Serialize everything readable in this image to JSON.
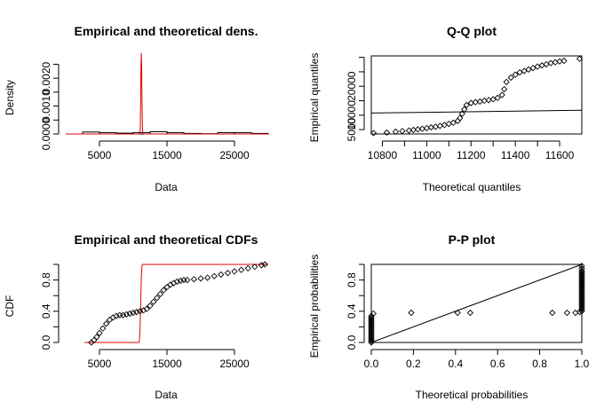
{
  "chart_data": [
    {
      "type": "histogram",
      "title": "Empirical and theoretical dens.",
      "xlabel": "Data",
      "ylabel": "Density",
      "xlim": [
        0,
        30000
      ],
      "ylim": [
        0,
        0.0028
      ],
      "x_ticks": [
        "5000",
        "15000",
        "25000"
      ],
      "y_ticks": [
        "0.0000",
        "0.0010",
        "0.0020"
      ],
      "x_tick_values": [
        5000,
        15000,
        25000
      ],
      "y_tick_values": [
        0,
        0.001,
        0.002
      ],
      "y_minor_ticks": [
        0.0005,
        0.0015,
        0.0025
      ],
      "histogram_bins": [
        {
          "from": 2500,
          "to": 5000,
          "density": 7e-05
        },
        {
          "from": 5000,
          "to": 7500,
          "density": 5e-05
        },
        {
          "from": 7500,
          "to": 10000,
          "density": 3e-05
        },
        {
          "from": 10000,
          "to": 12500,
          "density": 5e-05
        },
        {
          "from": 12500,
          "to": 15000,
          "density": 8e-05
        },
        {
          "from": 15000,
          "to": 17500,
          "density": 5e-05
        },
        {
          "from": 17500,
          "to": 20000,
          "density": 2e-05
        },
        {
          "from": 20000,
          "to": 22500,
          "density": 1e-05
        },
        {
          "from": 22500,
          "to": 25000,
          "density": 5e-05
        },
        {
          "from": 25000,
          "to": 27500,
          "density": 5e-05
        },
        {
          "from": 27500,
          "to": 30000,
          "density": 2e-05
        }
      ],
      "theoretical_density": {
        "x": [
          0,
          10900,
          11000,
          11050,
          11100,
          11150,
          11200,
          11250,
          11300,
          11350,
          11400,
          11500,
          30000
        ],
        "y": [
          0,
          0,
          5e-05,
          0.0003,
          0.0012,
          0.0024,
          0.0029,
          0.0024,
          0.0012,
          0.0003,
          5e-05,
          0,
          0
        ]
      },
      "colors": {
        "theoretical": "#dd0000",
        "empirical": "#000000"
      }
    },
    {
      "type": "scatter",
      "title": "Q-Q plot",
      "xlabel": "Theoretical quantiles",
      "ylabel": "Empirical quantiles",
      "xlim": [
        10750,
        11700
      ],
      "ylim": [
        3500,
        30500
      ],
      "x_ticks": [
        "10800",
        "11000",
        "11200",
        "11400",
        "11600"
      ],
      "y_ticks": [
        "5000",
        "10000",
        "20000"
      ],
      "x_tick_values": [
        10800,
        10900,
        11000,
        11100,
        11200,
        11300,
        11400,
        11500,
        11600
      ],
      "x_tick_labels_at": [
        10800,
        11000,
        11200,
        11400,
        11600
      ],
      "y_tick_values": [
        5000,
        10000,
        15000,
        20000,
        25000,
        30000
      ],
      "y_tick_labels_at": [
        5000,
        10000,
        20000
      ],
      "reference_line": {
        "x": [
          10750,
          11700
        ],
        "y": [
          10750,
          11700
        ]
      },
      "points": {
        "x": [
          10760,
          10820,
          10860,
          10890,
          10920,
          10940,
          10960,
          10980,
          11000,
          11020,
          11040,
          11060,
          11080,
          11100,
          11120,
          11140,
          11150,
          11160,
          11170,
          11180,
          11200,
          11220,
          11240,
          11260,
          11280,
          11300,
          11320,
          11340,
          11350,
          11360,
          11380,
          11400,
          11420,
          11440,
          11460,
          11480,
          11500,
          11520,
          11540,
          11560,
          11580,
          11600,
          11620,
          11690
        ],
        "y": [
          3800,
          4000,
          4300,
          4500,
          4700,
          4900,
          5100,
          5300,
          5500,
          5800,
          6000,
          6300,
          6600,
          7000,
          7400,
          8000,
          9000,
          10500,
          12000,
          13500,
          14200,
          14500,
          14700,
          15000,
          15200,
          15500,
          16000,
          17000,
          19000,
          21500,
          23000,
          24000,
          24800,
          25300,
          25800,
          26300,
          26800,
          27200,
          27600,
          28000,
          28300,
          28600,
          28800,
          29500
        ]
      }
    },
    {
      "type": "line",
      "title": "Empirical and theoretical CDFs",
      "xlabel": "Data",
      "ylabel": "CDF",
      "xlim": [
        0,
        30000
      ],
      "ylim": [
        0,
        1
      ],
      "x_ticks": [
        "5000",
        "15000",
        "25000"
      ],
      "y_ticks": [
        "0.0",
        "0.4",
        "0.8"
      ],
      "x_tick_values": [
        5000,
        15000,
        25000
      ],
      "y_tick_values": [
        0,
        0.2,
        0.4,
        0.6,
        0.8,
        1.0
      ],
      "y_tick_labels_at": [
        0,
        0.4,
        0.8
      ],
      "theoretical_cdf": {
        "x": [
          2800,
          10800,
          10900,
          11000,
          11100,
          11200,
          11300,
          11400,
          30000
        ],
        "y": [
          0,
          0,
          0.01,
          0.15,
          0.5,
          0.85,
          0.99,
          1.0,
          1.0
        ]
      },
      "empirical_cdf": {
        "x": [
          3800,
          4200,
          4600,
          5000,
          5500,
          6000,
          6500,
          7000,
          7500,
          8000,
          8500,
          9000,
          9500,
          10000,
          10500,
          11000,
          11500,
          12000,
          12500,
          13000,
          13500,
          14000,
          14500,
          15000,
          15500,
          16000,
          16500,
          17000,
          17500,
          18000,
          19000,
          20000,
          21000,
          22000,
          23000,
          24000,
          25000,
          26000,
          27000,
          28000,
          29000,
          29500
        ],
        "y": [
          0.0,
          0.03,
          0.07,
          0.12,
          0.18,
          0.24,
          0.29,
          0.32,
          0.34,
          0.35,
          0.35,
          0.36,
          0.37,
          0.38,
          0.39,
          0.4,
          0.41,
          0.43,
          0.47,
          0.52,
          0.57,
          0.62,
          0.67,
          0.71,
          0.74,
          0.76,
          0.78,
          0.79,
          0.8,
          0.8,
          0.81,
          0.82,
          0.83,
          0.85,
          0.87,
          0.89,
          0.91,
          0.93,
          0.95,
          0.97,
          0.99,
          1.0
        ]
      },
      "colors": {
        "theoretical": "#dd0000",
        "empirical": "#000000"
      }
    },
    {
      "type": "scatter",
      "title": "P-P plot",
      "xlabel": "Theoretical probabilities",
      "ylabel": "Empirical probabilities",
      "xlim": [
        0,
        1
      ],
      "ylim": [
        0,
        1
      ],
      "x_ticks": [
        "0.0",
        "0.2",
        "0.4",
        "0.6",
        "0.8",
        "1.0"
      ],
      "y_ticks": [
        "0.0",
        "0.4",
        "0.8"
      ],
      "x_tick_values": [
        0,
        0.2,
        0.4,
        0.6,
        0.8,
        1.0
      ],
      "y_tick_values": [
        0,
        0.2,
        0.4,
        0.6,
        0.8,
        1.0
      ],
      "y_tick_labels_at": [
        0,
        0.4,
        0.8
      ],
      "reference_line": {
        "x": [
          0,
          1
        ],
        "y": [
          0,
          1
        ]
      },
      "points": {
        "x": [
          0.0,
          0.0,
          0.0,
          0.0,
          0.0,
          0.0,
          0.0,
          0.0,
          0.0,
          0.0,
          0.0,
          0.0,
          0.0,
          0.0,
          0.0,
          0.0,
          0.0,
          0.0,
          0.01,
          0.19,
          0.41,
          0.47,
          0.86,
          0.93,
          0.97,
          0.99,
          1.0,
          1.0,
          1.0,
          1.0,
          1.0,
          1.0,
          1.0,
          1.0,
          1.0,
          1.0,
          1.0,
          1.0,
          1.0,
          1.0,
          1.0,
          1.0,
          1.0,
          1.0,
          1.0,
          1.0,
          1.0,
          1.0,
          1.0,
          1.0,
          1.0,
          1.0,
          1.0,
          1.0,
          1.0
        ],
        "y": [
          0.0,
          0.02,
          0.04,
          0.06,
          0.08,
          0.1,
          0.12,
          0.14,
          0.16,
          0.18,
          0.2,
          0.22,
          0.24,
          0.26,
          0.28,
          0.3,
          0.32,
          0.34,
          0.37,
          0.38,
          0.38,
          0.38,
          0.38,
          0.38,
          0.38,
          0.39,
          0.4,
          0.42,
          0.44,
          0.46,
          0.48,
          0.5,
          0.52,
          0.54,
          0.56,
          0.58,
          0.6,
          0.62,
          0.64,
          0.66,
          0.68,
          0.7,
          0.72,
          0.74,
          0.76,
          0.78,
          0.8,
          0.82,
          0.84,
          0.86,
          0.88,
          0.9,
          0.92,
          0.95,
          0.98
        ]
      }
    }
  ]
}
